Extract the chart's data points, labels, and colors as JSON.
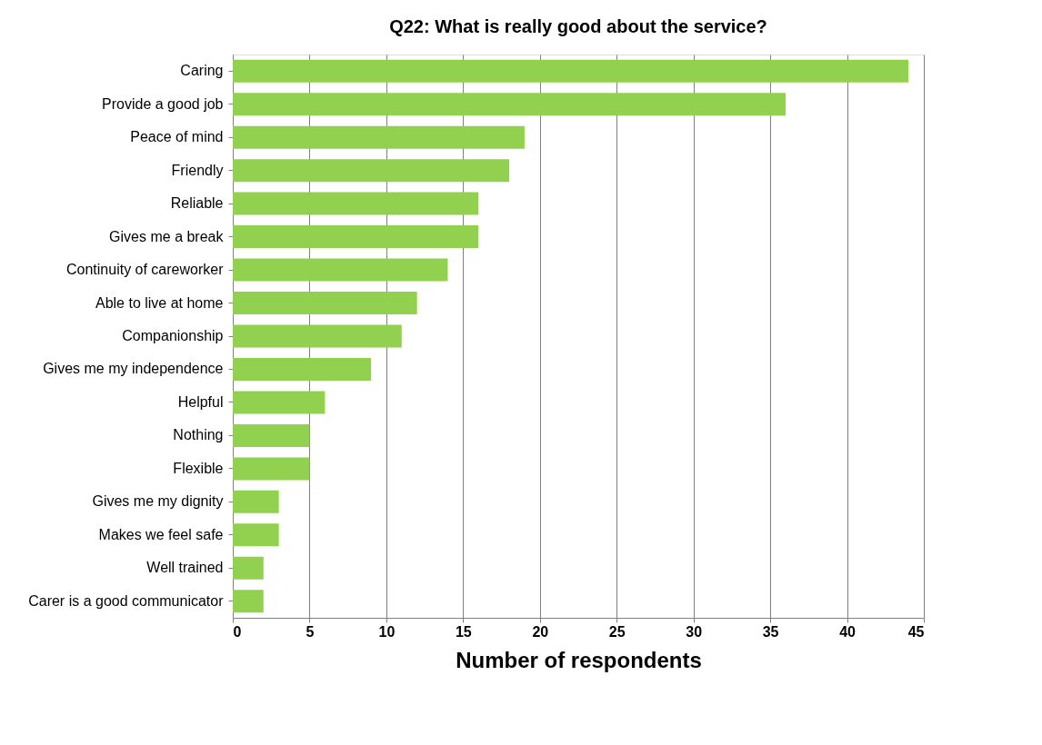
{
  "chart_data": {
    "type": "bar",
    "orientation": "horizontal",
    "title": "Q22: What is really good about the service?",
    "xlabel": "Number of respondents",
    "categories": [
      "Caring",
      "Provide a good job",
      "Peace of mind",
      "Friendly",
      "Reliable",
      "Gives me a break",
      "Continuity of careworker",
      "Able to live at home",
      "Companionship",
      "Gives me my independence",
      "Helpful",
      "Nothing",
      "Flexible",
      "Gives me my dignity",
      "Makes we feel safe",
      "Well trained",
      "Carer is a good communicator"
    ],
    "values": [
      44,
      36,
      19,
      18,
      16,
      16,
      14,
      12,
      11,
      9,
      6,
      5,
      5,
      3,
      3,
      2,
      2
    ],
    "color": "#92d050",
    "xlim": [
      0,
      45
    ],
    "xticks": [
      0,
      5,
      10,
      15,
      20,
      25,
      30,
      35,
      40,
      45
    ],
    "grid": "x"
  }
}
